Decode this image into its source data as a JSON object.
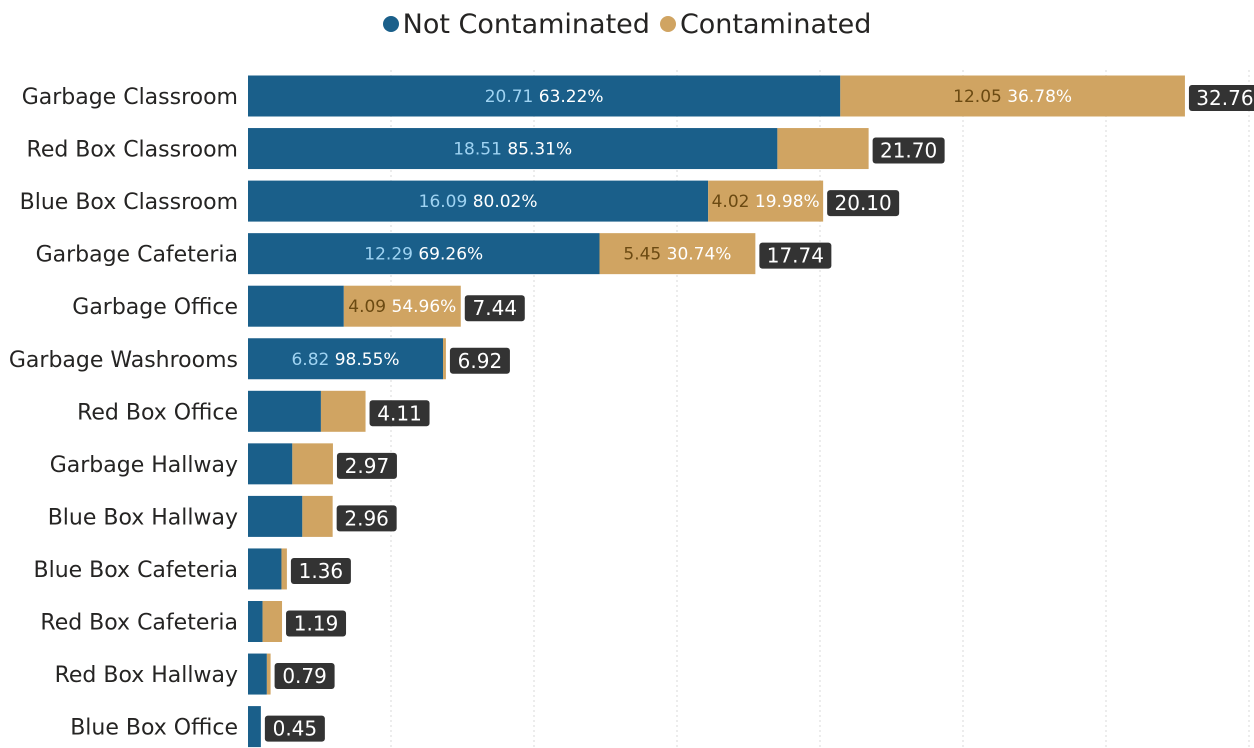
{
  "legend": {
    "items": [
      {
        "label": "Not Contaminated",
        "color": "#1a5f8a"
      },
      {
        "label": "Contaminated",
        "color": "#d0a462"
      }
    ]
  },
  "chart_data": {
    "type": "bar",
    "orientation": "horizontal",
    "stacked": true,
    "categories": [
      "Garbage Classroom",
      "Red Box Classroom",
      "Blue Box Classroom",
      "Garbage Cafeteria",
      "Garbage Office",
      "Garbage Washrooms",
      "Red Box Office",
      "Garbage Hallway",
      "Blue Box Hallway",
      "Blue Box Cafeteria",
      "Red Box Cafeteria",
      "Red Box Hallway",
      "Blue Box Office"
    ],
    "series": [
      {
        "name": "Not Contaminated",
        "color": "#1a5f8a",
        "values": [
          20.71,
          18.51,
          16.09,
          12.29,
          3.35,
          6.82,
          2.55,
          1.55,
          1.9,
          1.17,
          0.51,
          0.66,
          0.45
        ],
        "value_labels": [
          "20.71",
          "18.51",
          "16.09",
          "12.29",
          "",
          "6.82",
          "",
          "",
          "",
          "",
          "",
          "",
          ""
        ],
        "pct_labels": [
          "63.22%",
          "85.31%",
          "80.02%",
          "69.26%",
          "",
          "98.55%",
          "",
          "",
          "",
          "",
          "",
          "",
          ""
        ]
      },
      {
        "name": "Contaminated",
        "color": "#d0a462",
        "values": [
          12.05,
          3.19,
          4.02,
          5.45,
          4.09,
          0.1,
          1.56,
          1.42,
          1.06,
          0.19,
          0.68,
          0.13,
          0.0
        ],
        "value_labels": [
          "12.05",
          "",
          "4.02",
          "5.45",
          "4.09",
          "",
          "",
          "",
          "",
          "",
          "",
          "",
          ""
        ],
        "pct_labels": [
          "36.78%",
          "",
          "19.98%",
          "30.74%",
          "54.96%",
          "",
          "",
          "",
          "",
          "",
          "",
          "",
          ""
        ]
      }
    ],
    "totals": [
      "32.76",
      "21.70",
      "20.10",
      "17.74",
      "7.44",
      "6.92",
      "4.11",
      "2.97",
      "2.96",
      "1.36",
      "1.19",
      "0.79",
      "0.45"
    ],
    "xlim": [
      0,
      35
    ],
    "xgrid_step": 5,
    "grid": true,
    "legend_position": "top-center"
  }
}
